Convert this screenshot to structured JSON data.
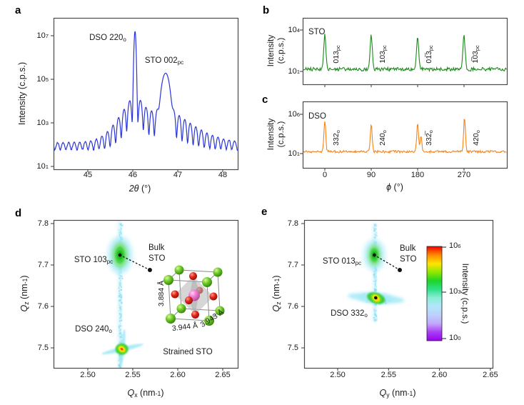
{
  "panels": {
    "a": {
      "letter": "a"
    },
    "b": {
      "letter": "b"
    },
    "c": {
      "letter": "c"
    },
    "d": {
      "letter": "d"
    },
    "e": {
      "letter": "e"
    }
  },
  "chart_data": [
    {
      "panel": "a",
      "type": "line",
      "line_color": "#2a35d8",
      "xlabel": "*2θ* (°)",
      "ylabel": "Intensity (c.p.s.)",
      "x_ticks": [
        45,
        46,
        47,
        48
      ],
      "xlim": [
        44.24,
        48.33
      ],
      "y_scale": "log",
      "y_tick_labels": [
        "10^{1}",
        "10^{3}",
        "10^{5}",
        "10^{7}"
      ],
      "y_tick_logs": [
        1,
        3,
        5,
        7
      ],
      "annotations": [
        {
          "text": "DSO 220_{o}",
          "x": 151,
          "y": 53
        },
        {
          "text": "STO 002_{pc}",
          "x": 230,
          "y": 85
        }
      ],
      "model": {
        "background_cps": 90,
        "fringe_period_deg": 0.123,
        "peaks": [
          {
            "name": "DSO 220o",
            "center_deg": 46.05,
            "peak_cps": 16000000,
            "sigma_deg": 0.018,
            "tail_cps": 25000,
            "tail_decay_deg": 0.13
          },
          {
            "name": "STO 002pc",
            "center_deg": 46.73,
            "peak_cps": 190000,
            "sigma_deg": 0.075,
            "tail_cps": 6000,
            "tail_decay_deg": 0.28
          }
        ]
      }
    },
    {
      "panel": "b",
      "type": "line",
      "sample_label": "STO",
      "line_color": "#1a8a1a",
      "ylabel_lines": [
        "Intensity",
        "(c.p.s.)"
      ],
      "y_tick_labels": [
        "10^{1}",
        "10^{4}"
      ],
      "y_tick_logs": [
        1,
        4
      ],
      "x_ticks": [
        0,
        90,
        180,
        270
      ],
      "xlim": [
        -43,
        353
      ],
      "baseline_log": 1.16,
      "noise_log": 0.13,
      "sigma_deg": 3.0,
      "peaks": [
        {
          "label": "013_{pc}",
          "phi_deg": 0,
          "height_log": 2.45
        },
        {
          "label": "103_{pc}",
          "phi_deg": 90,
          "height_log": 2.42
        },
        {
          "label": "01̅3_{pc}",
          "phi_deg": 180,
          "height_log": 2.44
        },
        {
          "label": "1̅03_{pc}",
          "phi_deg": 270,
          "height_log": 2.43
        }
      ]
    },
    {
      "panel": "c",
      "type": "line",
      "sample_label": "DSO",
      "line_color": "#f5841a",
      "xlabel": "*ϕ* (°)",
      "ylabel_lines": [
        "Intensity",
        "(c.p.s.)"
      ],
      "y_tick_labels": [
        "10^{1}",
        "10^{6}"
      ],
      "y_tick_logs": [
        1,
        6
      ],
      "x_ticks": [
        0,
        90,
        180,
        270
      ],
      "xlim": [
        -43,
        353
      ],
      "baseline_log": 1.25,
      "noise_log": 0.15,
      "sigma_deg": 2.5,
      "peaks": [
        {
          "label": "332_{o}",
          "phi_deg": 0,
          "height_log": 4.0
        },
        {
          "label": "240_{o}",
          "phi_deg": 90,
          "height_log": 3.55
        },
        {
          "label": "332̅_{o}",
          "phi_deg": 180,
          "height_log": 3.5,
          "shoulder": {
            "phi_deg": 186.5,
            "height_log": 2.05
          }
        },
        {
          "label": "420_{o}",
          "phi_deg": 271,
          "height_log": 4.3
        }
      ]
    },
    {
      "panel": "d",
      "type": "heatmap",
      "xlabel": "*Q*_{x} (nm^{-1})",
      "ylabel": "*Q*_{z} (nm^{-1})",
      "x_ticks": [
        2.5,
        2.55,
        2.6,
        2.65
      ],
      "y_ticks": [
        7.5,
        7.6,
        7.7,
        7.8
      ],
      "xlim": [
        2.462,
        2.667
      ],
      "ylim": [
        7.452,
        7.809
      ],
      "streak_q": 2.535,
      "streak_qz_range": [
        7.45,
        7.805
      ],
      "features": [
        {
          "name": "sto-film-peak",
          "label": "STO 103_{pc}",
          "q": 2.535,
          "qz": 7.724
        },
        {
          "name": "bulk-sto-reference",
          "label": "Bulk STO",
          "q": 2.569,
          "qz": 7.688
        },
        {
          "name": "dso-substrate-peak",
          "label": "DSO 240_{o}",
          "q": 2.537,
          "qz": 7.497
        }
      ],
      "caption": "Strained STO",
      "inset": {
        "name": "strained-STO-unit-cell",
        "a_out_of_plane": "3.884 Å",
        "a_in_plane_1": "3.944 Å",
        "a_in_plane_2": "3.943 Å"
      }
    },
    {
      "panel": "e",
      "type": "heatmap",
      "xlabel": "*Q*_{y} (nm^{-1})",
      "ylabel": "*Q*_{z} (nm^{-1})",
      "x_ticks": [
        2.5,
        2.55,
        2.6,
        2.65
      ],
      "y_ticks": [
        7.5,
        7.6,
        7.7,
        7.8
      ],
      "xlim": [
        2.467,
        2.652
      ],
      "ylim": [
        7.452,
        7.809
      ],
      "streak_q": 2.536,
      "streak_qz_range": [
        7.565,
        7.8
      ],
      "features": [
        {
          "name": "sto-film-peak",
          "label": "STO 013_{pc}",
          "q": 2.536,
          "qz": 7.724
        },
        {
          "name": "bulk-sto-reference",
          "label": "Bulk STO",
          "q": 2.561,
          "qz": 7.688
        },
        {
          "name": "dso-substrate-peak",
          "label": "DSO 332_{o}",
          "q": 2.537,
          "qz": 7.62
        }
      ],
      "colorbar": {
        "label": "Intensity (c.p.s.)",
        "tick_labels": [
          "10^{6}",
          "10^{3}",
          "10^{0}"
        ],
        "gradient": [
          "#f20000",
          "#ff8a00",
          "#ffe400",
          "#8fe800",
          "#1fd428",
          "#2ee08a",
          "#8ceed6",
          "#b2e6fa",
          "#bcd0fb",
          "#c3a8fb",
          "#a83df5",
          "#9b00f0"
        ]
      }
    }
  ]
}
